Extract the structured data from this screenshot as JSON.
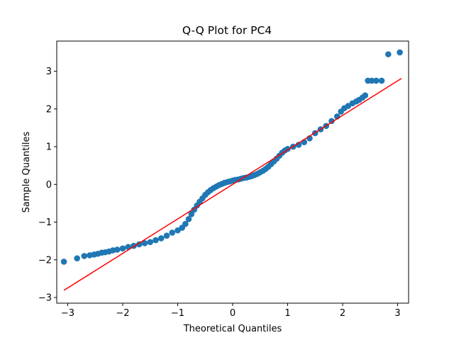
{
  "chart_data": {
    "type": "scatter",
    "title": "Q-Q Plot for PC4",
    "xlabel": "Theoretical Quantiles",
    "ylabel": "Sample Quantiles",
    "xlim": [
      -3.2,
      3.2
    ],
    "ylim": [
      -3.15,
      3.8
    ],
    "xticks": [
      -3,
      -2,
      -1,
      0,
      1,
      2,
      3
    ],
    "yticks": [
      -3,
      -2,
      -1,
      0,
      1,
      2,
      3
    ],
    "grid": false,
    "colors": {
      "points": "#1f77b4",
      "line": "#ff0000",
      "axes": "#000000"
    },
    "reference_line": {
      "x": [
        -3.07,
        3.07
      ],
      "y": [
        -2.81,
        2.81
      ]
    },
    "points": [
      {
        "x": -3.07,
        "y": -2.05
      },
      {
        "x": -2.83,
        "y": -1.96
      },
      {
        "x": -2.7,
        "y": -1.9
      },
      {
        "x": -2.6,
        "y": -1.88
      },
      {
        "x": -2.52,
        "y": -1.86
      },
      {
        "x": -2.45,
        "y": -1.84
      },
      {
        "x": -2.38,
        "y": -1.81
      },
      {
        "x": -2.32,
        "y": -1.8
      },
      {
        "x": -2.25,
        "y": -1.78
      },
      {
        "x": -2.18,
        "y": -1.75
      },
      {
        "x": -2.1,
        "y": -1.73
      },
      {
        "x": -2.0,
        "y": -1.7
      },
      {
        "x": -1.9,
        "y": -1.66
      },
      {
        "x": -1.8,
        "y": -1.63
      },
      {
        "x": -1.7,
        "y": -1.59
      },
      {
        "x": -1.6,
        "y": -1.56
      },
      {
        "x": -1.5,
        "y": -1.53
      },
      {
        "x": -1.4,
        "y": -1.48
      },
      {
        "x": -1.3,
        "y": -1.43
      },
      {
        "x": -1.2,
        "y": -1.36
      },
      {
        "x": -1.1,
        "y": -1.28
      },
      {
        "x": -1.0,
        "y": -1.22
      },
      {
        "x": -0.92,
        "y": -1.15
      },
      {
        "x": -0.86,
        "y": -1.05
      },
      {
        "x": -0.8,
        "y": -0.92
      },
      {
        "x": -0.75,
        "y": -0.79
      },
      {
        "x": -0.7,
        "y": -0.67
      },
      {
        "x": -0.65,
        "y": -0.56
      },
      {
        "x": -0.6,
        "y": -0.46
      },
      {
        "x": -0.55,
        "y": -0.37
      },
      {
        "x": -0.5,
        "y": -0.28
      },
      {
        "x": -0.45,
        "y": -0.21
      },
      {
        "x": -0.4,
        "y": -0.15
      },
      {
        "x": -0.35,
        "y": -0.1
      },
      {
        "x": -0.3,
        "y": -0.06
      },
      {
        "x": -0.25,
        "y": -0.02
      },
      {
        "x": -0.2,
        "y": 0.01
      },
      {
        "x": -0.15,
        "y": 0.04
      },
      {
        "x": -0.1,
        "y": 0.06
      },
      {
        "x": -0.05,
        "y": 0.08
      },
      {
        "x": 0.0,
        "y": 0.1
      },
      {
        "x": 0.05,
        "y": 0.12
      },
      {
        "x": 0.1,
        "y": 0.13
      },
      {
        "x": 0.15,
        "y": 0.15
      },
      {
        "x": 0.2,
        "y": 0.17
      },
      {
        "x": 0.25,
        "y": 0.18
      },
      {
        "x": 0.3,
        "y": 0.2
      },
      {
        "x": 0.35,
        "y": 0.22
      },
      {
        "x": 0.4,
        "y": 0.25
      },
      {
        "x": 0.45,
        "y": 0.28
      },
      {
        "x": 0.5,
        "y": 0.32
      },
      {
        "x": 0.55,
        "y": 0.36
      },
      {
        "x": 0.6,
        "y": 0.41
      },
      {
        "x": 0.65,
        "y": 0.47
      },
      {
        "x": 0.7,
        "y": 0.54
      },
      {
        "x": 0.75,
        "y": 0.61
      },
      {
        "x": 0.8,
        "y": 0.68
      },
      {
        "x": 0.85,
        "y": 0.76
      },
      {
        "x": 0.9,
        "y": 0.84
      },
      {
        "x": 0.95,
        "y": 0.9
      },
      {
        "x": 1.0,
        "y": 0.94
      },
      {
        "x": 1.1,
        "y": 1.0
      },
      {
        "x": 1.2,
        "y": 1.05
      },
      {
        "x": 1.3,
        "y": 1.12
      },
      {
        "x": 1.4,
        "y": 1.22
      },
      {
        "x": 1.5,
        "y": 1.36
      },
      {
        "x": 1.6,
        "y": 1.46
      },
      {
        "x": 1.7,
        "y": 1.55
      },
      {
        "x": 1.8,
        "y": 1.68
      },
      {
        "x": 1.9,
        "y": 1.8
      },
      {
        "x": 1.97,
        "y": 1.93
      },
      {
        "x": 2.03,
        "y": 2.02
      },
      {
        "x": 2.1,
        "y": 2.08
      },
      {
        "x": 2.18,
        "y": 2.15
      },
      {
        "x": 2.25,
        "y": 2.2
      },
      {
        "x": 2.3,
        "y": 2.24
      },
      {
        "x": 2.36,
        "y": 2.3
      },
      {
        "x": 2.41,
        "y": 2.36
      },
      {
        "x": 2.46,
        "y": 2.75
      },
      {
        "x": 2.53,
        "y": 2.75
      },
      {
        "x": 2.61,
        "y": 2.75
      },
      {
        "x": 2.71,
        "y": 2.75
      },
      {
        "x": 2.83,
        "y": 3.45
      },
      {
        "x": 3.04,
        "y": 3.5
      }
    ]
  }
}
